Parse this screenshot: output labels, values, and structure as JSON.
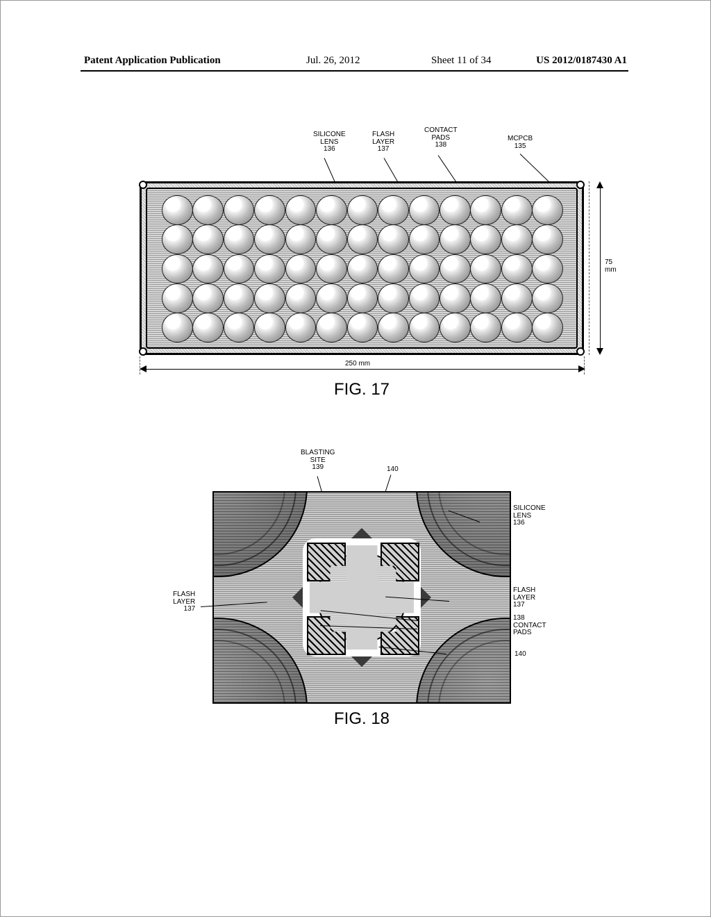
{
  "header": {
    "pubtype": "Patent Application Publication",
    "date": "Jul. 26, 2012",
    "sheet": "Sheet 11 of 34",
    "pubno": "US 2012/0187430 A1"
  },
  "fig17": {
    "caption": "FIG. 17",
    "dim_h_label": "250 mm",
    "dim_v_label": "75\nmm",
    "labels": {
      "silicone_lens": "SILICONE\nLENS\n136",
      "flash_layer": "FLASH\nLAYER\n137",
      "contact_pads": "CONTACT\nPADS\n138",
      "mcpcb": "MCPCB\n135"
    },
    "grid": {
      "cols": 13,
      "rows": 5
    },
    "board_width_mm": 250,
    "board_height_mm": 75,
    "colors": {
      "frame_hatch_a": "#b8b8b8",
      "frame_hatch_b": "#e8e8e8",
      "inner_hatch_a": "#9a9a9a",
      "inner_hatch_b": "#d6d6d6",
      "border": "#000000"
    }
  },
  "fig18": {
    "caption": "FIG. 18",
    "labels": {
      "blasting_site": "BLASTING\nSITE\n139",
      "silicone_lens": "SILICONE\nLENS\n136",
      "flash_layer_left": "FLASH\nLAYER\n137",
      "flash_layer_right": "FLASH\nLAYER\n137",
      "contact_pads": "138\nCONTACT\nPADS",
      "ref140_a": "140",
      "ref140_b": "140"
    },
    "colors": {
      "background_hatch_a": "#8f8f8f",
      "background_hatch_b": "#c9c9c9",
      "flash_diamond": "#3a3a3a",
      "blast_fill": "#d9d9d9",
      "pad_hatch_dark": "#000000",
      "pad_hatch_light": "#d0d0d0",
      "border": "#000000"
    }
  }
}
